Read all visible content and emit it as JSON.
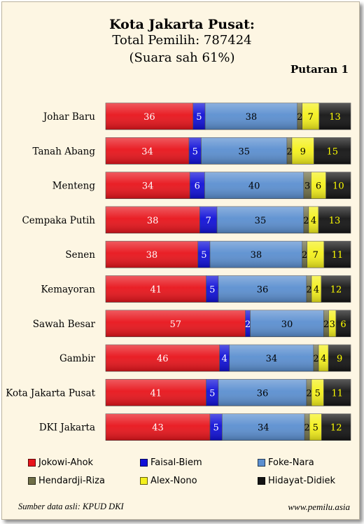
{
  "header": {
    "title": "Kota Jakarta Pusat:",
    "subtitle1": "Total Pemilih: 787424",
    "subtitle2": "(Suara sah 61%)",
    "round": "Putaran 1"
  },
  "footer": {
    "source": "Sumber data asli: KPUD DKI",
    "website": "www.pemilu.asia"
  },
  "chart_data": {
    "type": "bar",
    "orientation": "horizontal",
    "stacked": true,
    "unit": "percent",
    "categories": [
      "Johar Baru",
      "Tanah Abang",
      "Menteng",
      "Cempaka Putih",
      "Senen",
      "Kemayoran",
      "Sawah Besar",
      "Gambir",
      "Kota Jakarta Pusat",
      "DKI Jakarta"
    ],
    "series": [
      {
        "name": "Jokowi-Ahok",
        "color": "#e8141b",
        "values": [
          36,
          34,
          34,
          38,
          38,
          41,
          57,
          46,
          41,
          43
        ]
      },
      {
        "name": "Faisal-Biem",
        "color": "#1010d8",
        "values": [
          5,
          5,
          6,
          7,
          5,
          5,
          2,
          4,
          5,
          5
        ]
      },
      {
        "name": "Foke-Nara",
        "color": "#5b8fd0",
        "values": [
          38,
          35,
          40,
          35,
          38,
          36,
          30,
          34,
          36,
          34
        ]
      },
      {
        "name": "Hendardji-Riza",
        "color": "#6f6f48",
        "values": [
          2,
          2,
          3,
          2,
          2,
          2,
          2,
          2,
          2,
          2
        ]
      },
      {
        "name": "Alex-Nono",
        "color": "#f4f01c",
        "values": [
          7,
          9,
          6,
          4,
          7,
          4,
          3,
          4,
          5,
          5
        ]
      },
      {
        "name": "Hidayat-Didiek",
        "color": "#141414",
        "values": [
          13,
          15,
          10,
          13,
          11,
          12,
          6,
          9,
          11,
          12
        ]
      }
    ],
    "label_colors": [
      "#ffffff",
      "#ffffff",
      "#000000",
      "#000000",
      "#000000",
      "#ffff00"
    ],
    "legend": "bottom",
    "grid": false
  }
}
